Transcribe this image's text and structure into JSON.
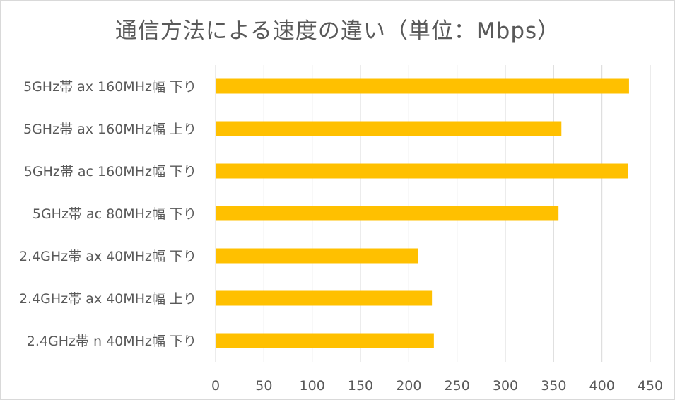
{
  "chart_data": {
    "type": "bar",
    "orientation": "horizontal",
    "title": "通信方法による速度の違い（単位：Mbps）",
    "categories": [
      "5GHz帯 ax 160MHz幅 下り",
      "5GHz帯 ax 160MHz幅 上り",
      "5GHz帯 ac 160MHz幅 下り",
      "5GHz帯 ac 80MHz幅 下り",
      "2.4GHz帯 ax 40MHz幅 下り",
      "2.4GHz帯 ax 40MHz幅 上り",
      "2.4GHz帯 n 40MHz幅 下り"
    ],
    "values": [
      428,
      358,
      427,
      355,
      210,
      224,
      226
    ],
    "xlim": [
      0,
      450
    ],
    "xticks": [
      "0",
      "50",
      "100",
      "150",
      "200",
      "250",
      "300",
      "350",
      "400",
      "450"
    ],
    "grid": true,
    "bar_color": "#FFC000",
    "grid_color": "#D9D9D9",
    "text_color": "#595959"
  }
}
